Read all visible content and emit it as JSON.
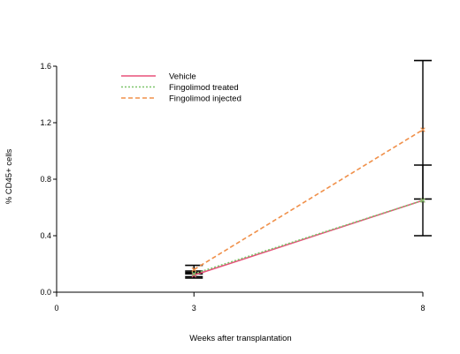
{
  "chart_data": {
    "type": "line",
    "xlabel": "Weeks after transplantation",
    "ylabel": "% CD45+ cells",
    "xlim": [
      0,
      8
    ],
    "ylim": [
      0,
      1.6
    ],
    "xticks": [
      0,
      3,
      8
    ],
    "xtick_labels": [
      "0",
      "3",
      "8"
    ],
    "yticks": [
      0,
      0.4,
      0.8,
      1.2,
      1.6
    ],
    "ytick_labels": [
      "0.0",
      "0.4",
      "0.8",
      "1.2",
      "1.6"
    ],
    "legend_position": "top-left",
    "grid": false,
    "series": [
      {
        "name": "Vehicle",
        "color": "#e8507a",
        "dash": "solid",
        "x": [
          3,
          8
        ],
        "y": [
          0.12,
          0.65
        ],
        "error_low": [
          0.1,
          0.4
        ],
        "error_high": [
          0.14,
          0.9
        ]
      },
      {
        "name": "Fingolimod treated",
        "color": "#7cc46a",
        "dash": "dotted",
        "x": [
          3,
          8
        ],
        "y": [
          0.13,
          0.65
        ],
        "error_low": [
          0.11,
          0.65
        ],
        "error_high": [
          0.15,
          0.65
        ]
      },
      {
        "name": "Fingolimod injected",
        "color": "#f0904a",
        "dash": "dashed",
        "x": [
          3,
          8
        ],
        "y": [
          0.16,
          1.15
        ],
        "error_low": [
          0.13,
          0.66
        ],
        "error_high": [
          0.19,
          1.64
        ]
      }
    ]
  }
}
